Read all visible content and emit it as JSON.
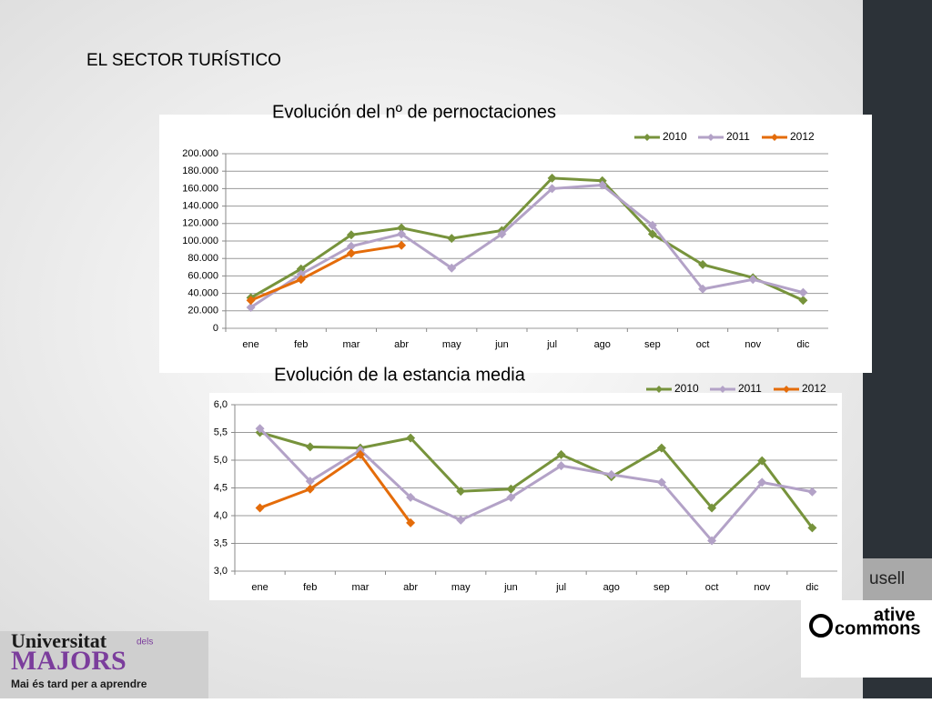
{
  "slide_title": "EL SECTOR TURÍSTICO",
  "chart_data": [
    {
      "type": "line",
      "title": "Evolución del nº de pernoctaciones",
      "categories": [
        "ene",
        "feb",
        "mar",
        "abr",
        "may",
        "jun",
        "jul",
        "ago",
        "sep",
        "oct",
        "nov",
        "dic"
      ],
      "series": [
        {
          "name": "2010",
          "color": "#77933c",
          "values": [
            35000,
            68000,
            107000,
            115000,
            103000,
            112000,
            172000,
            169000,
            108000,
            73000,
            58000,
            32000
          ]
        },
        {
          "name": "2011",
          "color": "#b3a2c7",
          "values": [
            24000,
            62000,
            94000,
            108000,
            69000,
            108000,
            160000,
            164000,
            118000,
            45000,
            56000,
            41000
          ]
        },
        {
          "name": "2012",
          "color": "#e46c0a",
          "values": [
            32000,
            56000,
            86000,
            95000,
            null,
            null,
            null,
            null,
            null,
            null,
            null,
            null
          ]
        }
      ],
      "ylim": [
        0,
        200000
      ],
      "yticks": [
        0,
        {
          "value": 20000,
          "label": "20.000"
        },
        {
          "value": 40000,
          "label": "40.000"
        },
        {
          "value": 60000,
          "label": "60.000"
        },
        {
          "value": 80000,
          "label": "80.000"
        },
        {
          "value": 100000,
          "label": "100.000"
        },
        {
          "value": 120000,
          "label": "120.000"
        },
        {
          "value": 140000,
          "label": "140.000"
        },
        {
          "value": 160000,
          "label": "160.000"
        },
        {
          "value": 180000,
          "label": "180.000"
        },
        {
          "value": 200000,
          "label": "200.000"
        }
      ],
      "grid": true,
      "legend": "top-right"
    },
    {
      "type": "line",
      "title": "Evolución de la estancia media",
      "categories": [
        "ene",
        "feb",
        "mar",
        "abr",
        "may",
        "jun",
        "jul",
        "ago",
        "sep",
        "oct",
        "nov",
        "dic"
      ],
      "series": [
        {
          "name": "2010",
          "color": "#77933c",
          "values": [
            5.5,
            5.24,
            5.22,
            5.4,
            4.44,
            4.48,
            5.1,
            4.7,
            5.22,
            4.14,
            4.99,
            3.78
          ]
        },
        {
          "name": "2011",
          "color": "#b3a2c7",
          "values": [
            5.57,
            4.62,
            5.18,
            4.33,
            3.92,
            4.33,
            4.9,
            4.74,
            4.6,
            3.55,
            4.6,
            4.43
          ]
        },
        {
          "name": "2012",
          "color": "#e46c0a",
          "values": [
            4.14,
            4.48,
            5.1,
            3.87,
            null,
            null,
            null,
            null,
            null,
            null,
            null,
            null
          ]
        }
      ],
      "ylim": [
        3,
        6
      ],
      "yticks": [
        {
          "value": 3,
          "label": "3,0"
        },
        {
          "value": 3.5,
          "label": "3,5"
        },
        {
          "value": 4,
          "label": "4,0"
        },
        {
          "value": 4.5,
          "label": "4,5"
        },
        {
          "value": 5,
          "label": "5,0"
        },
        {
          "value": 5.5,
          "label": "5,5"
        },
        {
          "value": 6,
          "label": "6,0"
        }
      ],
      "grid": true,
      "legend": "top-right"
    }
  ],
  "footer": {
    "author_fragment": "usell",
    "cc_top": "ative",
    "cc_bottom": "commons"
  },
  "logo": {
    "name": "Universitat",
    "small": "dels",
    "majors": "MAJORS",
    "tagline": "Mai és tard per a aprendre"
  }
}
